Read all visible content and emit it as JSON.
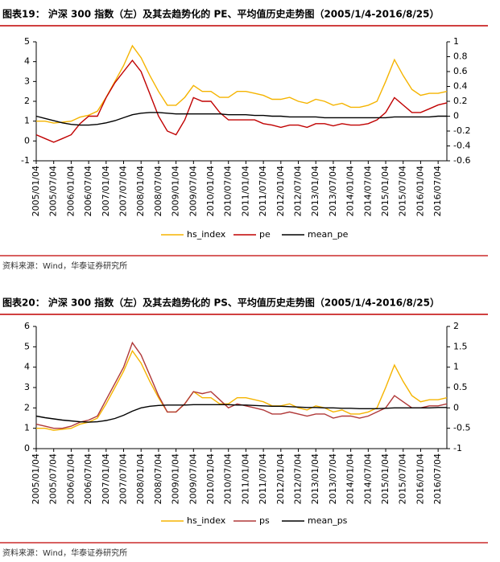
{
  "chart_data": [
    {
      "type": "line",
      "title": "图表19：  沪深 300 指数（左）及其去趋势化的 PE、平均值历史走势图（2005/1/4-2016/8/25）",
      "source": "资料来源：Wind，华泰证券研究所",
      "categories": [
        "2005/01/04",
        null,
        "2005/07/04",
        null,
        "2006/01/04",
        null,
        "2006/07/04",
        null,
        "2007/01/04",
        null,
        "2007/07/04",
        null,
        "2008/01/04",
        null,
        "2008/07/04",
        null,
        "2009/01/04",
        null,
        "2009/07/04",
        null,
        "2010/01/04",
        null,
        "2010/07/04",
        null,
        "2011/01/04",
        null,
        "2011/07/04",
        null,
        "2012/01/04",
        null,
        "2012/07/04",
        null,
        "2013/01/04",
        null,
        "2013/07/04",
        null,
        "2014/01/04",
        null,
        "2014/07/04",
        null,
        "2015/01/04",
        null,
        "2015/07/04",
        null,
        "2016/01/04",
        null,
        "2016/07/04",
        null
      ],
      "series": [
        {
          "name": "hs_index",
          "color": "#f5b400",
          "values": [
            1.0,
            1.0,
            0.9,
            0.95,
            1.0,
            1.2,
            1.3,
            1.5,
            2.2,
            3.0,
            3.8,
            4.8,
            4.2,
            3.3,
            2.5,
            1.8,
            1.8,
            2.2,
            2.8,
            2.5,
            2.5,
            2.2,
            2.2,
            2.5,
            2.5,
            2.4,
            2.3,
            2.1,
            2.1,
            2.2,
            2.0,
            1.9,
            2.1,
            2.0,
            1.8,
            1.9,
            1.7,
            1.7,
            1.8,
            2.0,
            3.0,
            4.1,
            3.3,
            2.6,
            2.3,
            2.4,
            2.4,
            2.5
          ]
        },
        {
          "name": "pe",
          "color": "#c00000",
          "axis": "y2",
          "values": [
            -0.25,
            -0.3,
            -0.35,
            -0.3,
            -0.25,
            -0.1,
            0.0,
            0.0,
            0.25,
            0.45,
            0.6,
            0.75,
            0.6,
            0.3,
            0.0,
            -0.2,
            -0.25,
            -0.05,
            0.25,
            0.2,
            0.2,
            0.05,
            -0.05,
            -0.05,
            -0.05,
            -0.05,
            -0.1,
            -0.12,
            -0.15,
            -0.12,
            -0.12,
            -0.15,
            -0.1,
            -0.1,
            -0.13,
            -0.1,
            -0.12,
            -0.12,
            -0.1,
            -0.05,
            0.05,
            0.25,
            0.15,
            0.05,
            0.05,
            0.1,
            0.15,
            0.18
          ]
        },
        {
          "name": "mean_pe",
          "color": "#000000",
          "axis": "y2",
          "values": [
            0.0,
            -0.03,
            -0.06,
            -0.09,
            -0.11,
            -0.12,
            -0.12,
            -0.11,
            -0.09,
            -0.06,
            -0.02,
            0.02,
            0.04,
            0.05,
            0.05,
            0.04,
            0.03,
            0.03,
            0.03,
            0.03,
            0.03,
            0.03,
            0.02,
            0.02,
            0.02,
            0.01,
            0.01,
            0.0,
            0.0,
            -0.01,
            -0.01,
            -0.01,
            -0.01,
            -0.02,
            -0.02,
            -0.02,
            -0.02,
            -0.02,
            -0.02,
            -0.02,
            -0.02,
            -0.01,
            -0.01,
            -0.01,
            -0.01,
            -0.01,
            0.0,
            0.0
          ]
        }
      ],
      "ylim": [
        -1,
        5
      ],
      "yticks": [
        -1,
        0,
        1,
        2,
        3,
        4,
        5
      ],
      "y2lim": [
        -0.6,
        1
      ],
      "y2ticks": [
        -0.6,
        -0.4,
        -0.2,
        0,
        0.2,
        0.4,
        0.6,
        0.8,
        1
      ]
    },
    {
      "type": "line",
      "title": "图表20：  沪深 300 指数（左）及其去趋势化的 PS、平均值历史走势图（2005/1/4-2016/8/25）",
      "source": "资料来源：Wind，华泰证券研究所",
      "categories": [
        "2005/01/04",
        null,
        "2005/07/04",
        null,
        "2006/01/04",
        null,
        "2006/07/04",
        null,
        "2007/01/04",
        null,
        "2007/07/04",
        null,
        "2008/01/04",
        null,
        "2008/07/04",
        null,
        "2009/01/04",
        null,
        "2009/07/04",
        null,
        "2010/01/04",
        null,
        "2010/07/04",
        null,
        "2011/01/04",
        null,
        "2011/07/04",
        null,
        "2012/01/04",
        null,
        "2012/07/04",
        null,
        "2013/01/04",
        null,
        "2013/07/04",
        null,
        "2014/01/04",
        null,
        "2014/07/04",
        null,
        "2015/01/04",
        null,
        "2015/07/04",
        null,
        "2016/01/04",
        null,
        "2016/07/04",
        null
      ],
      "series": [
        {
          "name": "hs_index",
          "color": "#f5b400",
          "values": [
            1.0,
            1.0,
            0.9,
            0.95,
            1.0,
            1.2,
            1.3,
            1.5,
            2.2,
            3.0,
            3.8,
            4.8,
            4.2,
            3.3,
            2.5,
            1.8,
            1.8,
            2.2,
            2.8,
            2.5,
            2.5,
            2.2,
            2.2,
            2.5,
            2.5,
            2.4,
            2.3,
            2.1,
            2.1,
            2.2,
            2.0,
            1.9,
            2.1,
            2.0,
            1.8,
            1.9,
            1.7,
            1.7,
            1.8,
            2.0,
            3.0,
            4.1,
            3.3,
            2.6,
            2.3,
            2.4,
            2.4,
            2.5
          ]
        },
        {
          "name": "ps",
          "color": "#b03838",
          "axis": "y2",
          "values": [
            -0.4,
            -0.45,
            -0.5,
            -0.5,
            -0.45,
            -0.35,
            -0.3,
            -0.2,
            0.2,
            0.6,
            1.0,
            1.6,
            1.3,
            0.8,
            0.3,
            -0.1,
            -0.1,
            0.1,
            0.4,
            0.35,
            0.4,
            0.2,
            0.0,
            0.1,
            0.05,
            0.0,
            -0.05,
            -0.15,
            -0.15,
            -0.1,
            -0.15,
            -0.2,
            -0.15,
            -0.15,
            -0.25,
            -0.2,
            -0.2,
            -0.25,
            -0.2,
            -0.1,
            0.0,
            0.3,
            0.15,
            0.0,
            0.0,
            0.05,
            0.05,
            0.1
          ]
        },
        {
          "name": "mean_ps",
          "color": "#000000",
          "axis": "y2",
          "values": [
            -0.2,
            -0.24,
            -0.27,
            -0.3,
            -0.32,
            -0.34,
            -0.35,
            -0.34,
            -0.31,
            -0.26,
            -0.18,
            -0.08,
            0.0,
            0.04,
            0.06,
            0.07,
            0.07,
            0.07,
            0.08,
            0.08,
            0.08,
            0.08,
            0.08,
            0.07,
            0.07,
            0.06,
            0.05,
            0.04,
            0.04,
            0.03,
            0.02,
            0.01,
            0.01,
            0.0,
            0.0,
            -0.01,
            -0.01,
            -0.02,
            -0.02,
            -0.02,
            -0.01,
            0.0,
            0.0,
            0.0,
            0.0,
            0.0,
            0.01,
            0.01
          ]
        }
      ],
      "ylim": [
        0,
        6
      ],
      "yticks": [
        0,
        1,
        2,
        3,
        4,
        5,
        6
      ],
      "y2lim": [
        -1,
        2
      ],
      "y2ticks": [
        -1,
        -0.5,
        0,
        0.5,
        1,
        1.5,
        2
      ]
    }
  ]
}
